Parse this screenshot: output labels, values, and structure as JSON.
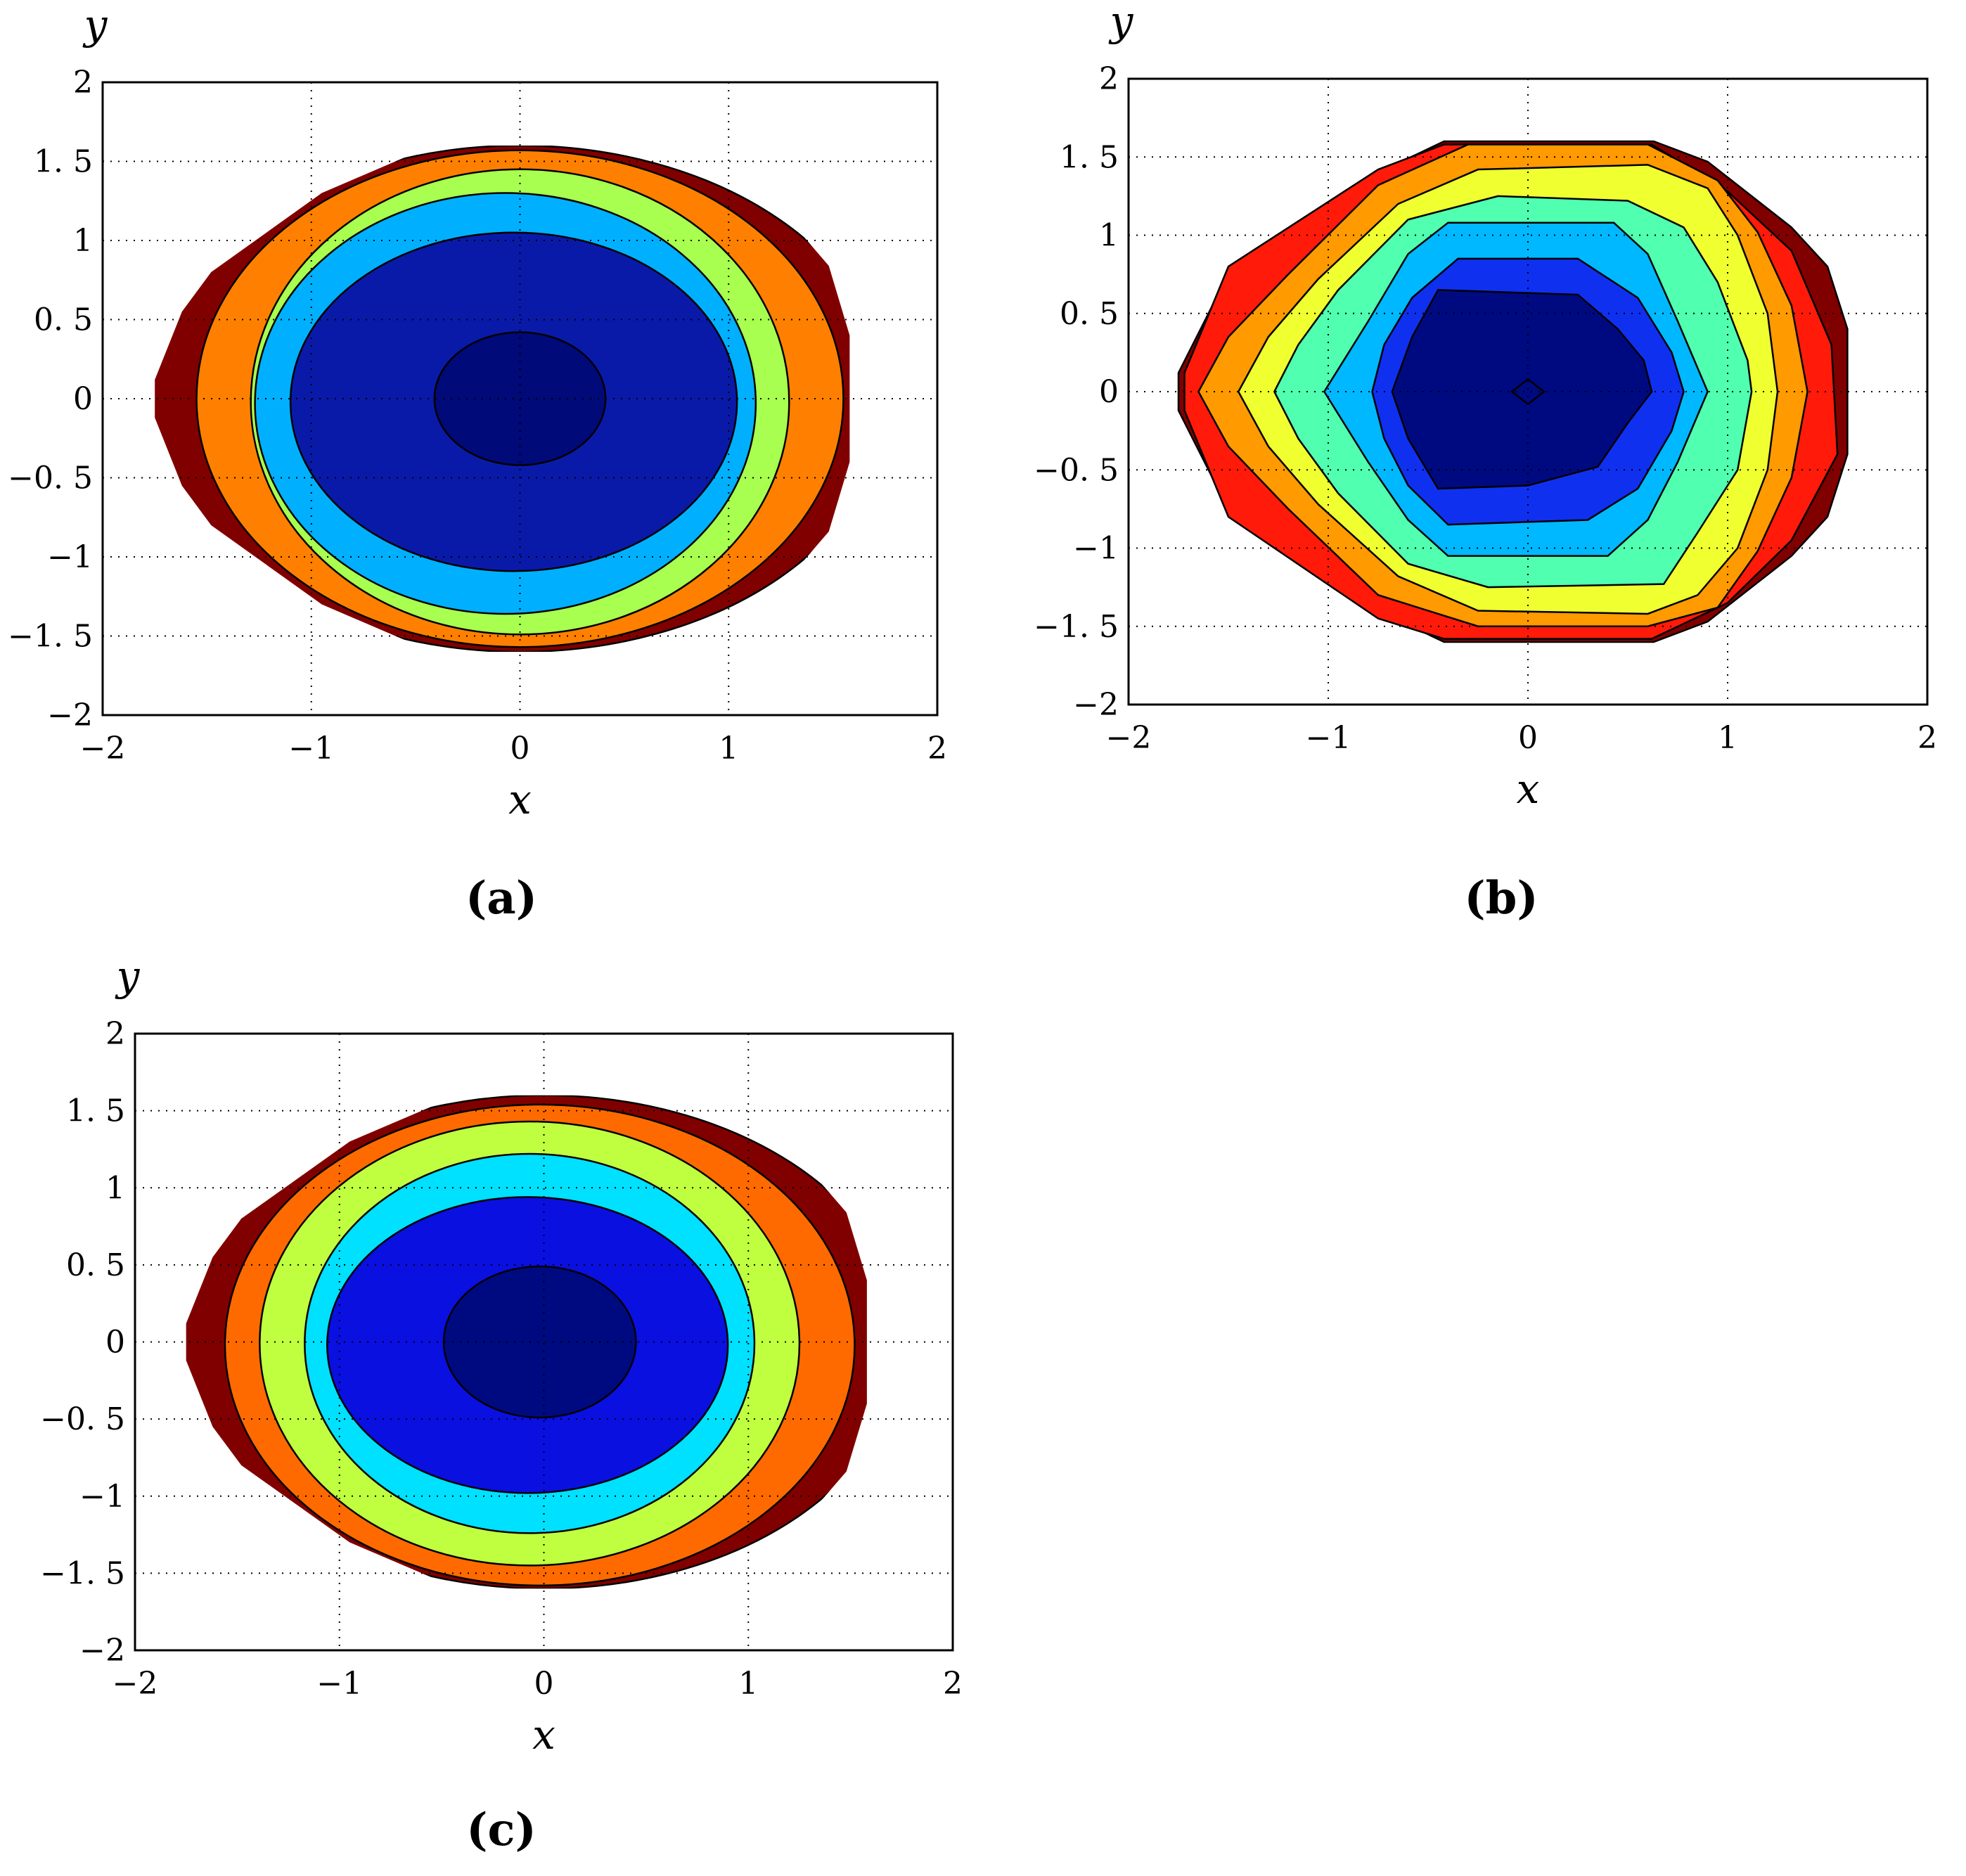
{
  "figure": {
    "captions": [
      "(a)",
      "(b)",
      "(c)"
    ]
  },
  "chart_data": [
    {
      "type": "contour",
      "panel_label": "(a)",
      "xlabel": "x",
      "ylabel": "y",
      "xlim": [
        -2,
        2
      ],
      "ylim": [
        -2,
        2
      ],
      "x_ticks": [
        -2,
        -1,
        0,
        1,
        2
      ],
      "y_ticks": [
        -2,
        -1.5,
        -1,
        -0.5,
        0,
        0.5,
        1,
        1.5,
        2
      ],
      "x_tick_labels": [
        "−2",
        "−1",
        "0",
        "1",
        "2"
      ],
      "y_tick_labels": [
        "−2",
        "−1. 5",
        "−1",
        "−0. 5",
        "0",
        "0. 5",
        "1",
        "1. 5",
        "2"
      ],
      "grid": true,
      "grid_style": "dotted",
      "domain_boundary": [
        [
          -0.42,
          1.6
        ],
        [
          0.64,
          1.6
        ],
        [
          1.0,
          1.47
        ],
        [
          1.33,
          1.07
        ],
        [
          1.48,
          0.84
        ],
        [
          1.58,
          0.4
        ],
        [
          1.58,
          -0.4
        ],
        [
          1.48,
          -0.84
        ],
        [
          1.33,
          -1.07
        ],
        [
          1.0,
          -1.47
        ],
        [
          0.64,
          -1.6
        ],
        [
          -0.42,
          -1.6
        ],
        [
          -0.95,
          -1.3
        ],
        [
          -1.48,
          -0.8
        ],
        [
          -1.62,
          -0.55
        ],
        [
          -1.75,
          -0.12
        ],
        [
          -1.75,
          0.12
        ],
        [
          -1.62,
          0.55
        ],
        [
          -1.48,
          0.8
        ],
        [
          -0.95,
          1.3
        ]
      ],
      "levels": [
        {
          "color": "#800000",
          "cx": 0.0,
          "cy": 0.0,
          "rx": 1.76,
          "ry": 1.6
        },
        {
          "color": "#ff8000",
          "cx": 0.0,
          "cy": 0.0,
          "rx": 1.55,
          "ry": 1.57
        },
        {
          "color": "#a8ff50",
          "cx": 0.0,
          "cy": -0.02,
          "rx": 1.29,
          "ry": 1.47
        },
        {
          "color": "#00b0ff",
          "cx": -0.07,
          "cy": -0.03,
          "rx": 1.2,
          "ry": 1.33
        },
        {
          "color": "#0a1aa8",
          "cx": -0.03,
          "cy": -0.02,
          "rx": 1.07,
          "ry": 1.07
        },
        {
          "color": "#000a78",
          "cx": 0.0,
          "cy": 0.0,
          "rx": 0.41,
          "ry": 0.42
        }
      ]
    },
    {
      "type": "contour",
      "panel_label": "(b)",
      "xlabel": "x",
      "ylabel": "y",
      "xlim": [
        -2,
        2
      ],
      "ylim": [
        -2,
        2
      ],
      "x_ticks": [
        -2,
        -1,
        0,
        1,
        2
      ],
      "y_ticks": [
        -2,
        -1.5,
        -1,
        -0.5,
        0,
        0.5,
        1,
        1.5,
        2
      ],
      "x_tick_labels": [
        "−2",
        "−1",
        "0",
        "1",
        "2"
      ],
      "y_tick_labels": [
        "−2",
        "−1. 5",
        "−1",
        "−0. 5",
        "0",
        "0. 5",
        "1",
        "1. 5",
        "2"
      ],
      "grid": true,
      "grid_style": "dotted",
      "levels": [
        {
          "color": "#800000",
          "poly": [
            [
              -0.42,
              1.6
            ],
            [
              0.63,
              1.6
            ],
            [
              0.9,
              1.47
            ],
            [
              1.32,
              1.05
            ],
            [
              1.5,
              0.8
            ],
            [
              1.6,
              0.4
            ],
            [
              1.6,
              -0.4
            ],
            [
              1.5,
              -0.8
            ],
            [
              1.32,
              -1.05
            ],
            [
              0.9,
              -1.47
            ],
            [
              0.63,
              -1.6
            ],
            [
              -0.42,
              -1.6
            ],
            [
              -0.75,
              -1.4
            ],
            [
              -1.45,
              -0.8
            ],
            [
              -1.58,
              -0.55
            ],
            [
              -1.75,
              -0.12
            ],
            [
              -1.75,
              0.12
            ],
            [
              -1.58,
              0.55
            ],
            [
              -1.45,
              0.8
            ],
            [
              -0.75,
              1.4
            ]
          ]
        },
        {
          "color": "#ff1a0a",
          "poly": [
            [
              -0.42,
              1.58
            ],
            [
              0.62,
              1.58
            ],
            [
              1.0,
              1.28
            ],
            [
              1.32,
              0.9
            ],
            [
              1.52,
              0.3
            ],
            [
              1.55,
              -0.4
            ],
            [
              1.32,
              -0.95
            ],
            [
              1.0,
              -1.35
            ],
            [
              0.62,
              -1.58
            ],
            [
              -0.42,
              -1.58
            ],
            [
              -0.75,
              -1.45
            ],
            [
              -1.5,
              -0.8
            ],
            [
              -1.72,
              -0.12
            ],
            [
              -1.72,
              0.12
            ],
            [
              -1.5,
              0.8
            ],
            [
              -0.75,
              1.42
            ]
          ]
        },
        {
          "color": "#ff9a00",
          "poly": [
            [
              -0.3,
              1.58
            ],
            [
              0.6,
              1.58
            ],
            [
              0.95,
              1.35
            ],
            [
              1.15,
              1.02
            ],
            [
              1.32,
              0.55
            ],
            [
              1.4,
              0.0
            ],
            [
              1.32,
              -0.55
            ],
            [
              1.15,
              -1.02
            ],
            [
              0.95,
              -1.38
            ],
            [
              0.6,
              -1.5
            ],
            [
              -0.25,
              -1.5
            ],
            [
              -0.75,
              -1.3
            ],
            [
              -1.2,
              -0.75
            ],
            [
              -1.5,
              -0.35
            ],
            [
              -1.65,
              0.0
            ],
            [
              -1.5,
              0.35
            ],
            [
              -1.2,
              0.75
            ],
            [
              -0.75,
              1.32
            ]
          ]
        },
        {
          "color": "#f0ff30",
          "poly": [
            [
              -0.25,
              1.42
            ],
            [
              0.6,
              1.45
            ],
            [
              0.9,
              1.3
            ],
            [
              1.05,
              1.0
            ],
            [
              1.2,
              0.5
            ],
            [
              1.25,
              0.0
            ],
            [
              1.2,
              -0.5
            ],
            [
              1.05,
              -1.0
            ],
            [
              0.85,
              -1.3
            ],
            [
              0.6,
              -1.42
            ],
            [
              -0.25,
              -1.4
            ],
            [
              -0.65,
              -1.18
            ],
            [
              -1.05,
              -0.72
            ],
            [
              -1.3,
              -0.35
            ],
            [
              -1.45,
              0.0
            ],
            [
              -1.3,
              0.35
            ],
            [
              -1.05,
              0.72
            ],
            [
              -0.65,
              1.2
            ]
          ]
        },
        {
          "color": "#50ffb0",
          "poly": [
            [
              -0.15,
              1.25
            ],
            [
              0.5,
              1.22
            ],
            [
              0.78,
              1.05
            ],
            [
              0.95,
              0.7
            ],
            [
              1.1,
              0.2
            ],
            [
              1.12,
              0.0
            ],
            [
              1.05,
              -0.5
            ],
            [
              0.85,
              -0.9
            ],
            [
              0.68,
              -1.23
            ],
            [
              -0.2,
              -1.25
            ],
            [
              -0.6,
              -1.1
            ],
            [
              -0.95,
              -0.65
            ],
            [
              -1.15,
              -0.3
            ],
            [
              -1.27,
              0.0
            ],
            [
              -1.15,
              0.3
            ],
            [
              -0.95,
              0.65
            ],
            [
              -0.6,
              1.1
            ]
          ]
        },
        {
          "color": "#00b8ff",
          "poly": [
            [
              -0.4,
              1.08
            ],
            [
              0.43,
              1.08
            ],
            [
              0.6,
              0.88
            ],
            [
              0.75,
              0.45
            ],
            [
              0.9,
              0.0
            ],
            [
              0.75,
              -0.45
            ],
            [
              0.6,
              -0.82
            ],
            [
              0.4,
              -1.05
            ],
            [
              -0.4,
              -1.05
            ],
            [
              -0.6,
              -0.82
            ],
            [
              -0.8,
              -0.45
            ],
            [
              -1.02,
              0.0
            ],
            [
              -0.8,
              0.45
            ],
            [
              -0.6,
              0.88
            ]
          ]
        },
        {
          "color": "#1030f0",
          "poly": [
            [
              -0.35,
              0.85
            ],
            [
              0.25,
              0.85
            ],
            [
              0.55,
              0.6
            ],
            [
              0.72,
              0.25
            ],
            [
              0.78,
              0.0
            ],
            [
              0.72,
              -0.25
            ],
            [
              0.55,
              -0.62
            ],
            [
              0.3,
              -0.82
            ],
            [
              -0.4,
              -0.85
            ],
            [
              -0.6,
              -0.6
            ],
            [
              -0.72,
              -0.3
            ],
            [
              -0.78,
              0.0
            ],
            [
              -0.72,
              0.3
            ],
            [
              -0.58,
              0.6
            ]
          ]
        },
        {
          "color": "#000a80",
          "poly": [
            [
              -0.45,
              0.65
            ],
            [
              0.25,
              0.62
            ],
            [
              0.45,
              0.4
            ],
            [
              0.58,
              0.2
            ],
            [
              0.62,
              0.0
            ],
            [
              0.5,
              -0.2
            ],
            [
              0.35,
              -0.48
            ],
            [
              0.0,
              -0.6
            ],
            [
              -0.45,
              -0.62
            ],
            [
              -0.6,
              -0.3
            ],
            [
              -0.68,
              0.0
            ],
            [
              -0.58,
              0.35
            ]
          ]
        },
        {
          "color": "#000a80",
          "poly": [
            [
              0.0,
              0.08
            ],
            [
              0.08,
              0.0
            ],
            [
              0.0,
              -0.08
            ],
            [
              -0.08,
              0.0
            ]
          ]
        }
      ]
    },
    {
      "type": "contour",
      "panel_label": "(c)",
      "xlabel": "x",
      "ylabel": "y",
      "xlim": [
        -2,
        2
      ],
      "ylim": [
        -2,
        2
      ],
      "x_ticks": [
        -2,
        -1,
        0,
        1,
        2
      ],
      "y_ticks": [
        -2,
        -1.5,
        -1,
        -0.5,
        0,
        0.5,
        1,
        1.5,
        2
      ],
      "x_tick_labels": [
        "−2",
        "−1",
        "0",
        "1",
        "2"
      ],
      "y_tick_labels": [
        "−2",
        "−1. 5",
        "−1",
        "−0. 5",
        "0",
        "0. 5",
        "1",
        "1. 5",
        "2"
      ],
      "grid": true,
      "grid_style": "dotted",
      "domain_boundary": [
        [
          -0.42,
          1.6
        ],
        [
          0.64,
          1.6
        ],
        [
          1.0,
          1.47
        ],
        [
          1.33,
          1.07
        ],
        [
          1.48,
          0.84
        ],
        [
          1.58,
          0.4
        ],
        [
          1.58,
          -0.4
        ],
        [
          1.48,
          -0.84
        ],
        [
          1.33,
          -1.07
        ],
        [
          1.0,
          -1.47
        ],
        [
          0.64,
          -1.6
        ],
        [
          -0.42,
          -1.6
        ],
        [
          -0.95,
          -1.3
        ],
        [
          -1.48,
          -0.8
        ],
        [
          -1.62,
          -0.55
        ],
        [
          -1.75,
          -0.12
        ],
        [
          -1.75,
          0.12
        ],
        [
          -1.62,
          0.55
        ],
        [
          -1.48,
          0.8
        ],
        [
          -0.95,
          1.3
        ]
      ],
      "levels": [
        {
          "color": "#800000",
          "cx": 0.0,
          "cy": 0.0,
          "rx": 1.76,
          "ry": 1.6
        },
        {
          "color": "#ff6a00",
          "cx": -0.02,
          "cy": -0.02,
          "rx": 1.54,
          "ry": 1.56
        },
        {
          "color": "#c0ff40",
          "cx": -0.07,
          "cy": -0.01,
          "rx": 1.32,
          "ry": 1.44
        },
        {
          "color": "#00e0ff",
          "cx": -0.07,
          "cy": -0.01,
          "rx": 1.1,
          "ry": 1.23
        },
        {
          "color": "#0a10e0",
          "cx": -0.08,
          "cy": -0.02,
          "rx": 0.98,
          "ry": 0.96
        },
        {
          "color": "#000a80",
          "cx": -0.02,
          "cy": 0.0,
          "rx": 0.47,
          "ry": 0.49
        }
      ]
    }
  ]
}
